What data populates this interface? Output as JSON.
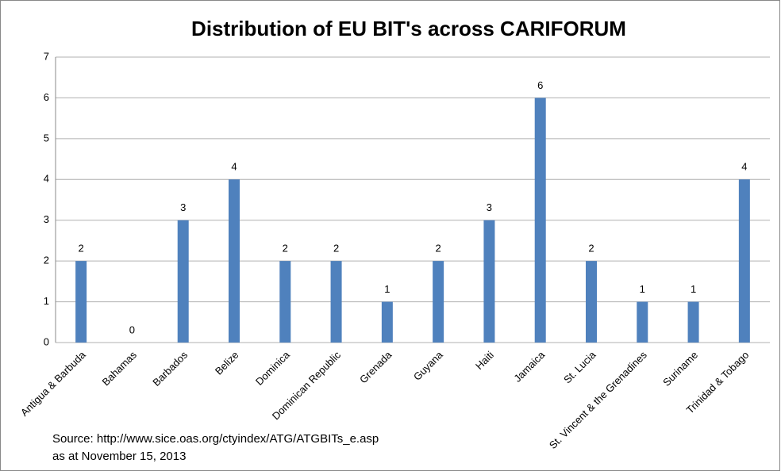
{
  "chart_data": {
    "type": "bar",
    "title": "Distribution of EU BIT's across CARIFORUM",
    "categories": [
      "Antigua & Barbuda",
      "Bahamas",
      "Barbados",
      "Belize",
      "Dominica",
      "Dominican Republic",
      "Grenada",
      "Guyana",
      "Haiti",
      "Jamaica",
      "St. Lucia",
      "St. Vincent & the Grenadines",
      "Suriname",
      "Trinidad & Tobago"
    ],
    "values": [
      2,
      0,
      3,
      4,
      2,
      2,
      1,
      2,
      3,
      6,
      2,
      1,
      1,
      4
    ],
    "color": "#4f81bd",
    "ylim": [
      0,
      7
    ],
    "yticks": [
      0,
      1,
      2,
      3,
      4,
      5,
      6,
      7
    ],
    "grid": true,
    "annotations": [
      "Source: http://www.sice.oas.org/ctyindex/ATG/ATGBITs_e.asp",
      "as at November 15, 2013"
    ]
  }
}
